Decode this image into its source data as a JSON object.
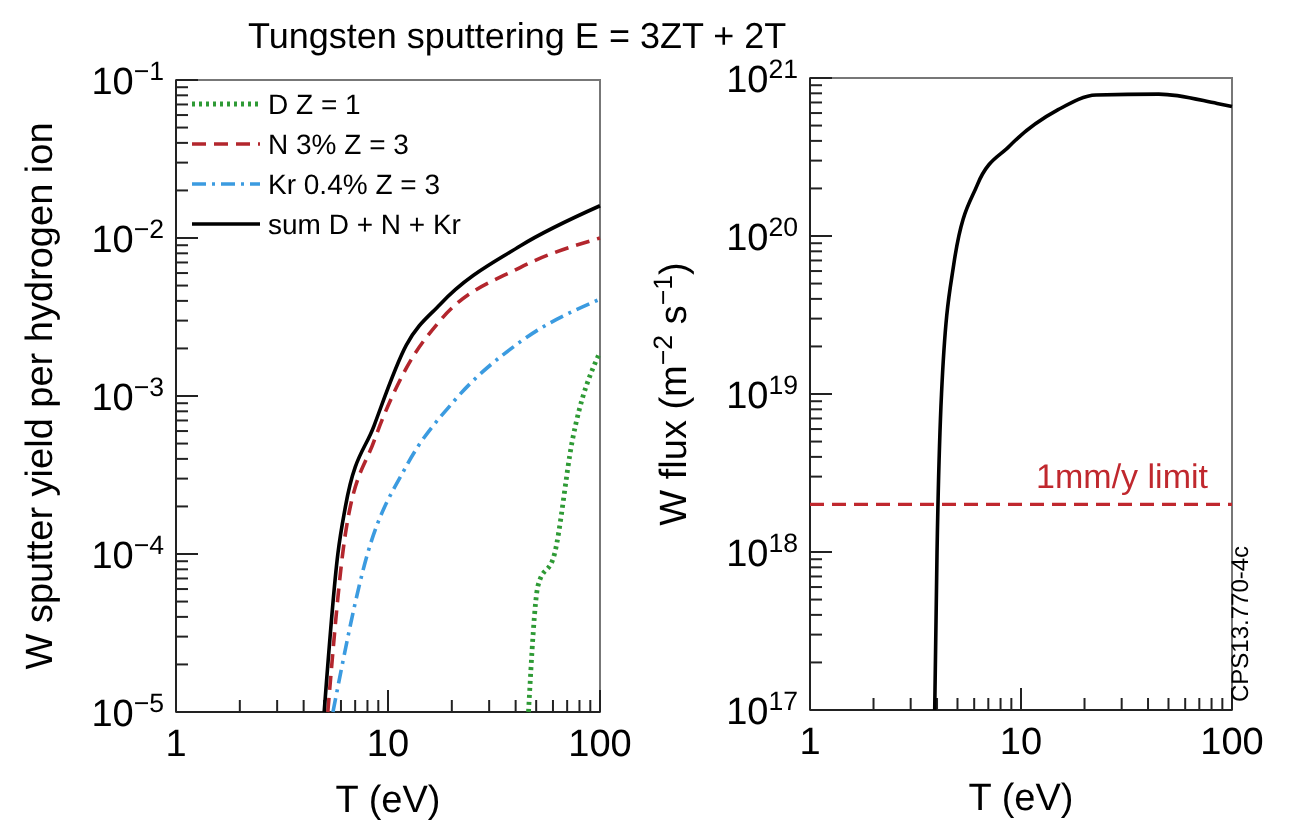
{
  "chart_data": [
    {
      "type": "line",
      "title": "Tungsten sputtering E = 3ZT + 2T",
      "xlabel": "T (eV)",
      "ylabel": "W sputter yield per hydrogen ion",
      "log": "xy",
      "xlim": [
        1,
        100
      ],
      "ylim": [
        1e-05,
        0.1
      ],
      "xticks": [
        1,
        10,
        100
      ],
      "yticks": [
        {
          "value": 1e-05,
          "label": "10$^{−5}$"
        },
        {
          "value": 0.0001,
          "label": "10$^{−4}$"
        },
        {
          "value": 0.001,
          "label": "10$^{−3}$"
        },
        {
          "value": 0.01,
          "label": "10$^{−2}$"
        },
        {
          "value": 0.1,
          "label": "10$^{−1}$"
        }
      ],
      "legend": "top left",
      "grid": false,
      "series": [
        {
          "name": "D Z = 1",
          "color": "#2e9a35",
          "line_style": "dotted",
          "x": [
            46,
            51,
            61,
            74,
            100
          ],
          "values": [
            1e-05,
            6.3e-05,
            0.0001,
            0.00052,
            0.0019
          ]
        },
        {
          "name": "N 3% Z = 3",
          "color": "#b3262d",
          "line_style": "dashed",
          "x": [
            5.2,
            6.3,
            8.6,
            12.2,
            17.6,
            42,
            100
          ],
          "values": [
            1e-05,
            0.000135,
            0.00052,
            0.0015,
            0.003,
            0.0065,
            0.01
          ]
        },
        {
          "name": "Kr 0.4% Z = 3",
          "color": "#3b9be0",
          "line_style": "dashdot",
          "x": [
            5.5,
            8.0,
            12.2,
            20.5,
            42,
            100
          ],
          "values": [
            1e-05,
            0.0001,
            0.00036,
            0.00093,
            0.0022,
            0.0041
          ]
        },
        {
          "name": "sum D + N + Kr",
          "color": "#000000",
          "line_style": "solid",
          "x": [
            5.0,
            5.8,
            6.3,
            8.6,
            12.2,
            17.6,
            42,
            100
          ],
          "values": [
            1e-05,
            0.0001,
            0.0002,
            0.00065,
            0.0021,
            0.0038,
            0.0089,
            0.016
          ]
        }
      ]
    },
    {
      "type": "line",
      "xlabel": "T (eV)",
      "ylabel": "W flux (m$^{−2}$ s$^{−1}$)",
      "log": "xy",
      "xlim": [
        1,
        100
      ],
      "ylim": [
        1e+17,
        1e+21
      ],
      "xticks": [
        1,
        10,
        100
      ],
      "yticks": [
        {
          "value": 1e+17,
          "label": "10$^{17}$"
        },
        {
          "value": 1e+18,
          "label": "10$^{18}$"
        },
        {
          "value": 1e+19,
          "label": "10$^{19}$"
        },
        {
          "value": 1e+20,
          "label": "10$^{20}$"
        },
        {
          "value": 1e+21,
          "label": "10$^{21}$"
        }
      ],
      "grid": false,
      "series": [
        {
          "color": "#000000",
          "line_style": "solid",
          "x": [
            3.9,
            4.0,
            4.2,
            4.8,
            6.2,
            8.8,
            15,
            22.7,
            45,
            85,
            100
          ],
          "values": [
            1e+17,
            1e+18,
            1e+19,
            6.6e+19,
            2.1e+20,
            3.7e+20,
            6.3e+20,
            7.8e+20,
            7.9e+20,
            6.9e+20,
            6.6e+20
          ]
        }
      ],
      "ref_lines": [
        {
          "axis": "y",
          "value": 2e+18,
          "label": "1mm/y limit",
          "color": "#c0282e",
          "line_style": "dashed"
        }
      ],
      "annotations": [
        "CPS13.770-4c"
      ]
    }
  ]
}
